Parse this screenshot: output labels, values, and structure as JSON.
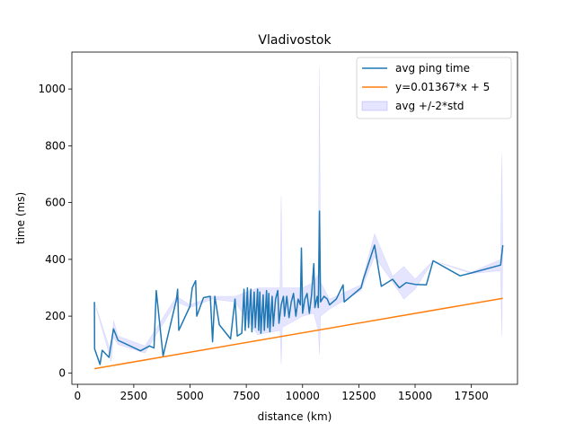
{
  "chart_data": {
    "type": "line",
    "title": "Vladivostok",
    "xlabel": "distance (km)",
    "ylabel": "time (ms)",
    "xlim": [
      -250,
      19550
    ],
    "ylim": [
      -40,
      1130
    ],
    "xticks": [
      0,
      2500,
      5000,
      7500,
      10000,
      12500,
      15000,
      17500
    ],
    "xtick_labels": [
      "0",
      "2500",
      "5000",
      "7500",
      "10000",
      "12500",
      "15000",
      "17500"
    ],
    "yticks": [
      0,
      200,
      400,
      600,
      800,
      1000
    ],
    "ytick_labels": [
      "0",
      "200",
      "400",
      "600",
      "800",
      "1000"
    ],
    "grid": false,
    "legend_position": "top-right",
    "series": [
      {
        "name": "avg ping time",
        "kind": "line",
        "color": "#1f77b4",
        "points": [
          [
            750,
            250
          ],
          [
            760,
            85
          ],
          [
            1000,
            30
          ],
          [
            1100,
            80
          ],
          [
            1400,
            55
          ],
          [
            1600,
            155
          ],
          [
            1800,
            115
          ],
          [
            2800,
            78
          ],
          [
            3200,
            95
          ],
          [
            3400,
            88
          ],
          [
            3500,
            290
          ],
          [
            3800,
            60
          ],
          [
            4400,
            260
          ],
          [
            4450,
            295
          ],
          [
            4500,
            150
          ],
          [
            5000,
            235
          ],
          [
            5100,
            300
          ],
          [
            5250,
            325
          ],
          [
            5300,
            200
          ],
          [
            5600,
            265
          ],
          [
            5900,
            270
          ],
          [
            6000,
            110
          ],
          [
            6100,
            270
          ],
          [
            6300,
            170
          ],
          [
            6800,
            120
          ],
          [
            7000,
            260
          ],
          [
            7100,
            130
          ],
          [
            7300,
            140
          ],
          [
            7400,
            295
          ],
          [
            7450,
            150
          ],
          [
            7550,
            300
          ],
          [
            7600,
            160
          ],
          [
            7700,
            295
          ],
          [
            7750,
            145
          ],
          [
            7850,
            285
          ],
          [
            7900,
            160
          ],
          [
            8000,
            295
          ],
          [
            8050,
            150
          ],
          [
            8100,
            285
          ],
          [
            8150,
            140
          ],
          [
            8250,
            275
          ],
          [
            8300,
            150
          ],
          [
            8400,
            290
          ],
          [
            8450,
            160
          ],
          [
            8500,
            280
          ],
          [
            8550,
            145
          ],
          [
            8650,
            270
          ],
          [
            8700,
            165
          ],
          [
            8800,
            260
          ],
          [
            8900,
            290
          ],
          [
            8950,
            175
          ],
          [
            9050,
            240
          ],
          [
            9150,
            270
          ],
          [
            9200,
            200
          ],
          [
            9300,
            270
          ],
          [
            9400,
            195
          ],
          [
            9500,
            250
          ],
          [
            9600,
            280
          ],
          [
            9700,
            200
          ],
          [
            9800,
            260
          ],
          [
            9900,
            240
          ],
          [
            9950,
            440
          ],
          [
            10000,
            210
          ],
          [
            10100,
            260
          ],
          [
            10200,
            280
          ],
          [
            10300,
            210
          ],
          [
            10400,
            275
          ],
          [
            10500,
            385
          ],
          [
            10550,
            230
          ],
          [
            10650,
            270
          ],
          [
            10700,
            230
          ],
          [
            10750,
            570
          ],
          [
            10800,
            250
          ],
          [
            10950,
            270
          ],
          [
            11100,
            260
          ],
          [
            11200,
            240
          ],
          [
            11500,
            260
          ],
          [
            11800,
            310
          ],
          [
            11850,
            250
          ],
          [
            12600,
            300
          ],
          [
            12700,
            330
          ],
          [
            13200,
            450
          ],
          [
            13500,
            305
          ],
          [
            14000,
            330
          ],
          [
            14300,
            300
          ],
          [
            14600,
            318
          ],
          [
            15000,
            312
          ],
          [
            15500,
            310
          ],
          [
            15800,
            395
          ],
          [
            17000,
            342
          ],
          [
            17500,
            352
          ],
          [
            18800,
            380
          ],
          [
            18900,
            450
          ]
        ]
      },
      {
        "name": "y=0.01367*x + 5",
        "kind": "line",
        "color": "#ff7f0e",
        "points": [
          [
            750,
            15
          ],
          [
            18900,
            263
          ]
        ]
      },
      {
        "name": "avg +/-2*std",
        "kind": "band",
        "color": "#0000ff",
        "opacity": 0.1,
        "upper": [
          [
            750,
            250
          ],
          [
            1500,
            70
          ],
          [
            1600,
            185
          ],
          [
            1800,
            130
          ],
          [
            3000,
            95
          ],
          [
            4400,
            270
          ],
          [
            5000,
            240
          ],
          [
            6000,
            270
          ],
          [
            7000,
            270
          ],
          [
            8000,
            300
          ],
          [
            9000,
            300
          ],
          [
            9050,
            625
          ],
          [
            9100,
            300
          ],
          [
            10000,
            300
          ],
          [
            10500,
            320
          ],
          [
            10700,
            350
          ],
          [
            10750,
            1075
          ],
          [
            10800,
            320
          ],
          [
            11200,
            260
          ],
          [
            12600,
            310
          ],
          [
            13200,
            490
          ],
          [
            14000,
            340
          ],
          [
            14500,
            375
          ],
          [
            15000,
            330
          ],
          [
            15800,
            395
          ],
          [
            17500,
            355
          ],
          [
            18800,
            400
          ],
          [
            18850,
            770
          ],
          [
            18900,
            450
          ]
        ],
        "lower": [
          [
            750,
            250
          ],
          [
            1500,
            40
          ],
          [
            1600,
            125
          ],
          [
            1800,
            100
          ],
          [
            3000,
            70
          ],
          [
            4400,
            250
          ],
          [
            5000,
            230
          ],
          [
            6000,
            260
          ],
          [
            7000,
            250
          ],
          [
            8000,
            135
          ],
          [
            9000,
            150
          ],
          [
            9050,
            30
          ],
          [
            9100,
            160
          ],
          [
            10000,
            200
          ],
          [
            10500,
            210
          ],
          [
            10700,
            150
          ],
          [
            10750,
            65
          ],
          [
            10800,
            200
          ],
          [
            11200,
            225
          ],
          [
            12600,
            290
          ],
          [
            13200,
            410
          ],
          [
            14000,
            320
          ],
          [
            14500,
            260
          ],
          [
            15000,
            295
          ],
          [
            15800,
            395
          ],
          [
            17500,
            350
          ],
          [
            18800,
            360
          ],
          [
            18850,
            130
          ],
          [
            18900,
            450
          ]
        ]
      }
    ]
  }
}
